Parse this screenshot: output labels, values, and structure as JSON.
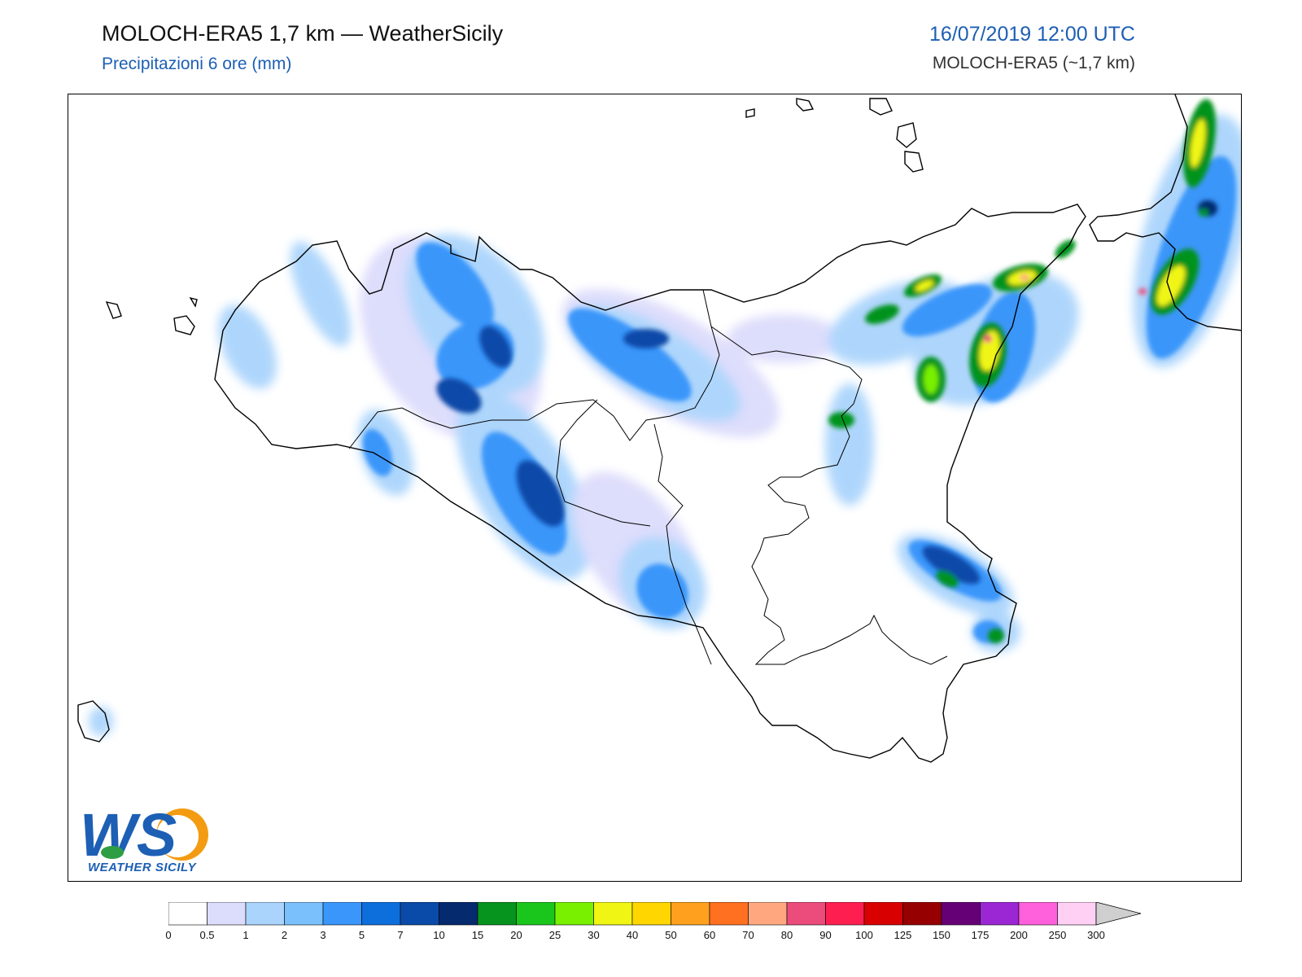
{
  "header": {
    "title": "MOLOCH-ERA5 1,7 km — WeatherSicily",
    "subtitle": "Precipitazioni 6 ore (mm)",
    "datetime": "16/07/2019 12:00 UTC",
    "model": "MOLOCH-ERA5 (~1,7 km)"
  },
  "logo": {
    "letters": "WS",
    "name": "WEATHER SICILY",
    "colors": {
      "primary": "#1d5fb4",
      "secondary": "#f39c12",
      "accent": "#2e9e44"
    }
  },
  "colorbar": {
    "tick_labels": [
      "0",
      "0.5",
      "1",
      "2",
      "3",
      "5",
      "7",
      "10",
      "15",
      "20",
      "25",
      "30",
      "40",
      "50",
      "60",
      "70",
      "80",
      "90",
      "100",
      "125",
      "150",
      "175",
      "200",
      "250",
      "300"
    ],
    "colors": [
      "#ffffff",
      "#dcdcfc",
      "#aad4fc",
      "#7ac0fc",
      "#3a96fa",
      "#0d6fdc",
      "#0a4aa8",
      "#052a6e",
      "#06931e",
      "#1bc61c",
      "#78f000",
      "#f0f514",
      "#ffd600",
      "#ffa01e",
      "#ff7020",
      "#ffa880",
      "#ec4c7c",
      "#ff1e50",
      "#d80000",
      "#960000",
      "#660077",
      "#9b27d4",
      "#ff60dc",
      "#ffd0f4"
    ],
    "extend_color": "#cfcfcf"
  },
  "map": {
    "region": "Sicilia",
    "land_color": "#ffffff",
    "coast_color": "#000000"
  }
}
